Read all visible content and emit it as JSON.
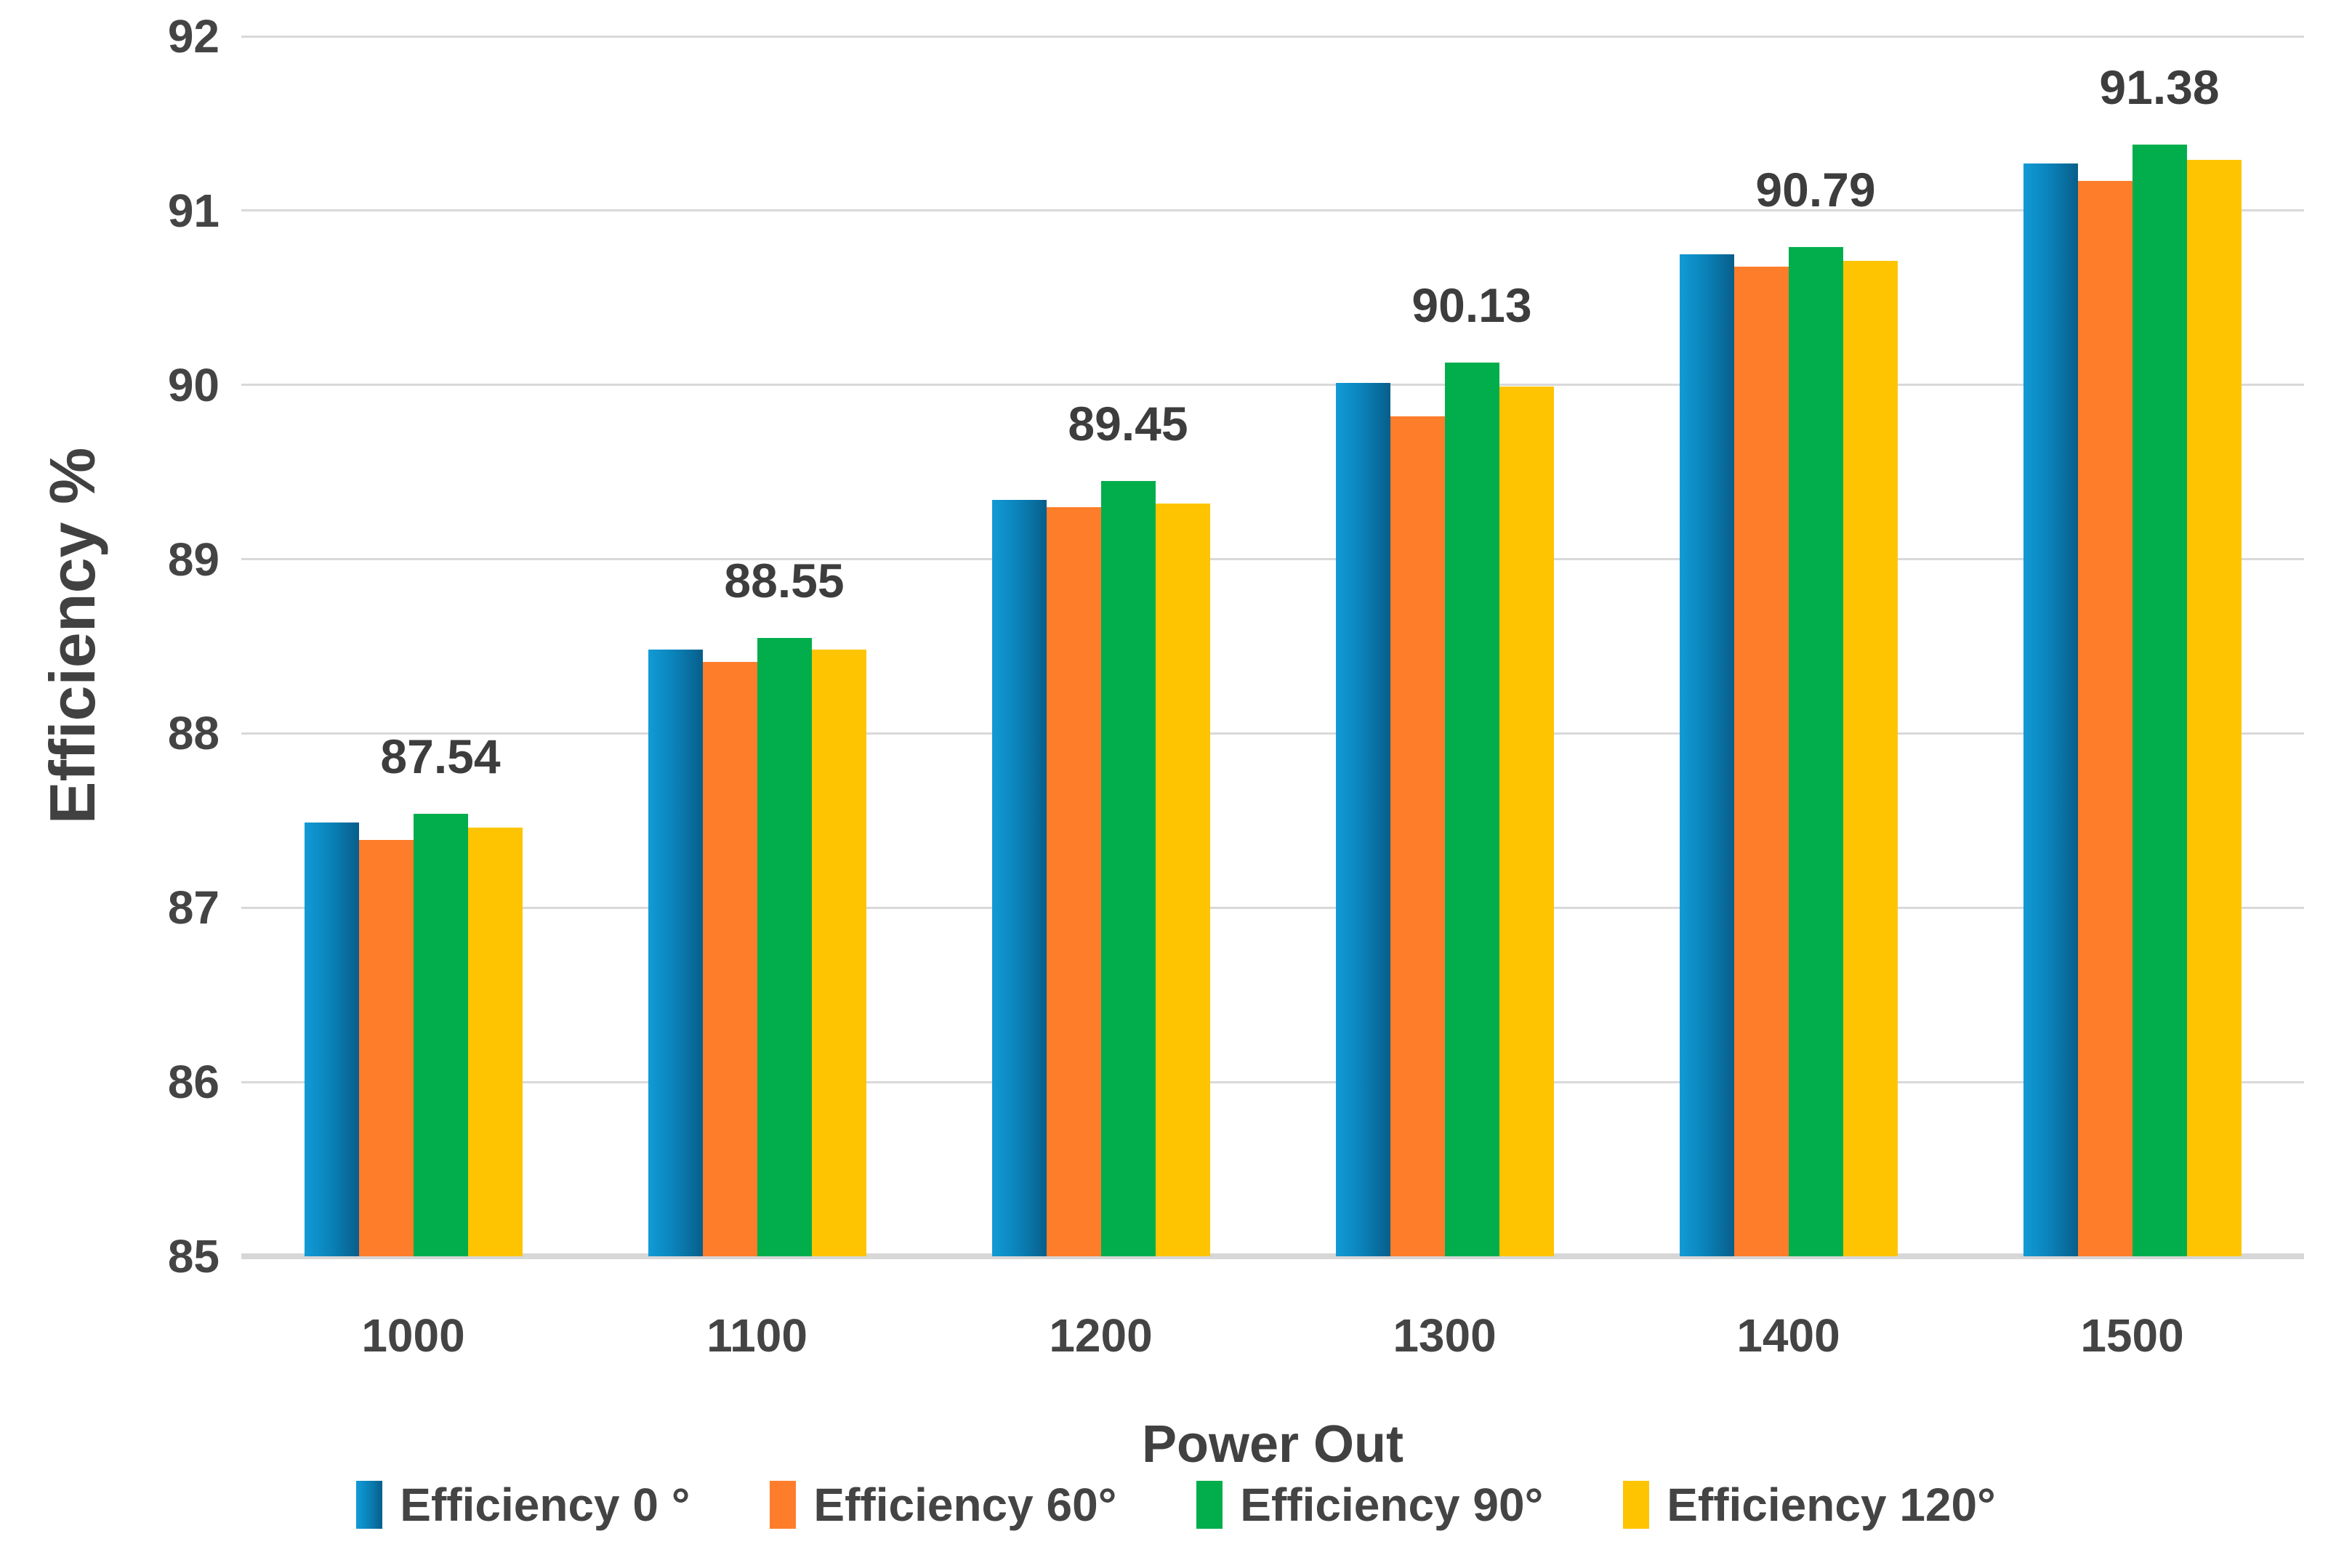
{
  "colors": {
    "background": "#ffffff",
    "grid": "#d9d9d9",
    "axis_text": "#444444",
    "label_text": "#3d3d3d",
    "series_blue_gradient_left": "#129bd6",
    "series_blue_gradient_right": "#085e8a",
    "series_orange": "#fd7d2b",
    "series_green": "#02ae4c",
    "series_yellow": "#fec401"
  },
  "chart_data": {
    "type": "bar",
    "title": "",
    "xlabel": "Power Out",
    "ylabel": "Efficiency %",
    "ylim": [
      85,
      92
    ],
    "yticks": [
      85,
      86,
      87,
      88,
      89,
      90,
      91,
      92
    ],
    "grid": true,
    "legend_position": "bottom",
    "categories": [
      "1000",
      "1100",
      "1200",
      "1300",
      "1400",
      "1500"
    ],
    "series": [
      {
        "name": "Efficiency 0 °",
        "color": "#0d93cc",
        "gradient": [
          "#129bd6",
          "#0a84bb",
          "#085e8a"
        ],
        "values": [
          87.49,
          88.48,
          89.34,
          90.01,
          90.75,
          91.27
        ]
      },
      {
        "name": "Efficiency 60°",
        "color": "#fd7d2b",
        "values": [
          87.39,
          88.41,
          89.3,
          89.82,
          90.68,
          91.17
        ]
      },
      {
        "name": "Efficiency 90°",
        "color": "#02ae4c",
        "values": [
          87.54,
          88.55,
          89.45,
          90.13,
          90.79,
          91.38
        ],
        "has_data_labels": true
      },
      {
        "name": "Efficiency 120°",
        "color": "#fec401",
        "values": [
          87.46,
          88.48,
          89.32,
          89.99,
          90.71,
          91.29
        ]
      }
    ],
    "data_labels": [
      "87.54",
      "88.55",
      "89.45",
      "90.13",
      "90.79",
      "91.38"
    ]
  }
}
